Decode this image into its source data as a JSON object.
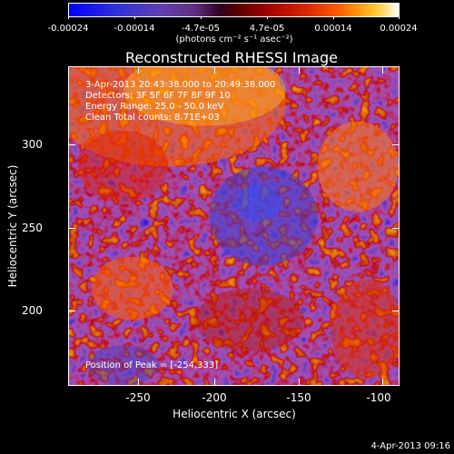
{
  "colorbar": {
    "ticks": [
      "-0.00024",
      "-0.00014",
      "-4.7e-05",
      "4.7e-05",
      "0.00014",
      "0.00024"
    ],
    "units": "(photons cm⁻² s⁻¹ asec⁻²)"
  },
  "title": "Reconstructed RHESSI Image",
  "info": {
    "time": "3-Apr-2013 20:43:38.000 to 20:49:38.000",
    "detectors": "Detectors: 3F 5F 6F 7F 8F 9F 10",
    "energy": "Energy Range: 25.0 - 50.0 keV",
    "clean": "Clean    Total counts: 8.71E+03"
  },
  "peak": "Position of Peak = [-254,333]",
  "axes": {
    "xlabel": "Heliocentric X (arcsec)",
    "ylabel": "Heliocentric Y (arcsec)",
    "xticks": [
      "-250",
      "-200",
      "-150",
      "-100"
    ],
    "yticks": [
      "200",
      "250",
      "300"
    ],
    "x_range": [
      -290,
      -95
    ],
    "y_range": [
      150,
      335
    ]
  },
  "timestamp": "4-Apr-2013 09:16"
}
